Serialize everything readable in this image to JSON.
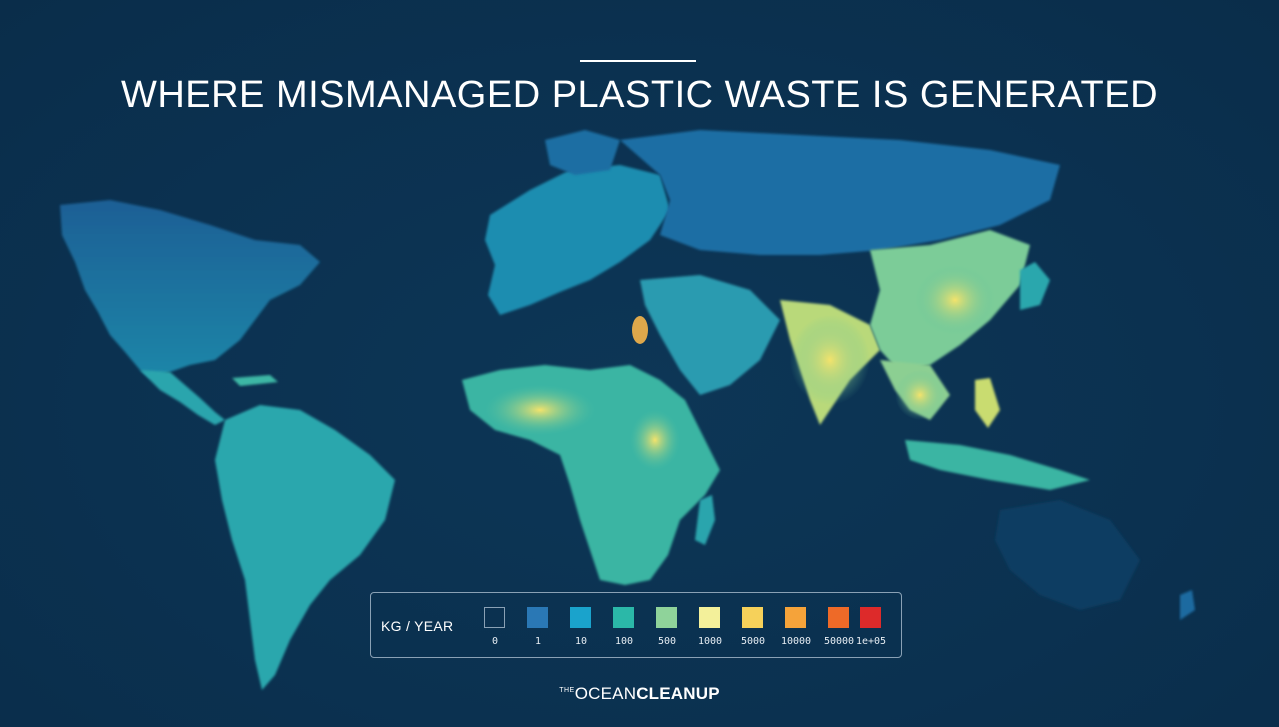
{
  "title": "WHERE MISMANAGED PLASTIC WASTE IS GENERATED",
  "legend": {
    "title": "KG / YEAR",
    "items": [
      {
        "label": "0",
        "color": "#0b3150"
      },
      {
        "label": "1",
        "color": "#2a78b5"
      },
      {
        "label": "10",
        "color": "#1aa3cc"
      },
      {
        "label": "100",
        "color": "#2bb8a8"
      },
      {
        "label": "500",
        "color": "#8fd39a"
      },
      {
        "label": "1000",
        "color": "#f3f09a"
      },
      {
        "label": "5000",
        "color": "#f6d15a"
      },
      {
        "label": "10000",
        "color": "#f5a33a"
      },
      {
        "label": "50000",
        "color": "#ee6a28"
      },
      {
        "label": "1e+05",
        "color": "#dd2a2a"
      }
    ]
  },
  "brand": {
    "the": "THE",
    "ocean": "OCEAN",
    "cleanup": "CLEANUP"
  },
  "colors": {
    "background": "#0b3150",
    "land_low": "#1f6aa0",
    "land_mid": "#27a8b8",
    "land_high": "#d7dd6e",
    "hotspot": "#f0d95a"
  }
}
